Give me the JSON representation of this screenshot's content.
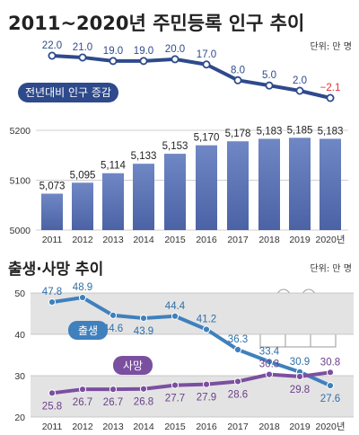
{
  "title": "2011~2020년 주민등록 인구 추이",
  "unit_label": "단위: 만 명",
  "colors": {
    "bar": "#4b63a5",
    "bar_light": "#6f87c4",
    "change_line": "#2e4a8c",
    "birth_line": "#3f80bd",
    "death_line": "#7b4fa0",
    "negative": "#e03030",
    "band": "#e3e3e3"
  },
  "chart_data": [
    {
      "type": "line",
      "title": "",
      "series": [
        {
          "name": "전년대비 인구 증감",
          "values": [
            22.0,
            21.0,
            19.0,
            19.0,
            20.0,
            17.0,
            8.0,
            5.0,
            2.0,
            -2.1
          ]
        }
      ],
      "categories": [
        "2011",
        "2012",
        "2013",
        "2014",
        "2015",
        "2016",
        "2017",
        "2018",
        "2019",
        "2020"
      ],
      "value_labels": [
        "22.0",
        "21.0",
        "19.0",
        "19.0",
        "20.0",
        "17.0",
        "8.0",
        "5.0",
        "2.0",
        "−2.1"
      ],
      "ylim": [
        -2.1,
        22.0
      ]
    },
    {
      "type": "bar",
      "title": "",
      "categories": [
        "2011",
        "2012",
        "2013",
        "2014",
        "2015",
        "2016",
        "2017",
        "2018",
        "2019",
        "2020년"
      ],
      "values": [
        5073,
        5095,
        5114,
        5133,
        5153,
        5170,
        5178,
        5183,
        5185,
        5183
      ],
      "value_labels": [
        "5,073",
        "5,095",
        "5,114",
        "5,133",
        "5,153",
        "5,170",
        "5,178",
        "5,183",
        "5,185",
        "5,183"
      ],
      "yticks": [
        "5200",
        "5100",
        "5000"
      ],
      "ylim": [
        5000,
        5200
      ],
      "grid": true
    },
    {
      "type": "line",
      "title": "출생·사망 추이",
      "unit_label": "단위: 만 명",
      "categories": [
        "2011",
        "2012",
        "2013",
        "2014",
        "2015",
        "2016",
        "2017",
        "2018",
        "2019",
        "2020년"
      ],
      "series": [
        {
          "name": "출생",
          "values": [
            47.8,
            48.9,
            44.6,
            43.9,
            44.4,
            41.2,
            36.3,
            33.4,
            30.9,
            27.6
          ]
        },
        {
          "name": "사망",
          "values": [
            25.8,
            26.7,
            26.7,
            26.8,
            27.7,
            27.9,
            28.6,
            30.3,
            29.8,
            30.8
          ]
        }
      ],
      "yticks": [
        "50",
        "40",
        "30",
        "20"
      ],
      "ylim": [
        20,
        50
      ],
      "grid": true
    }
  ]
}
